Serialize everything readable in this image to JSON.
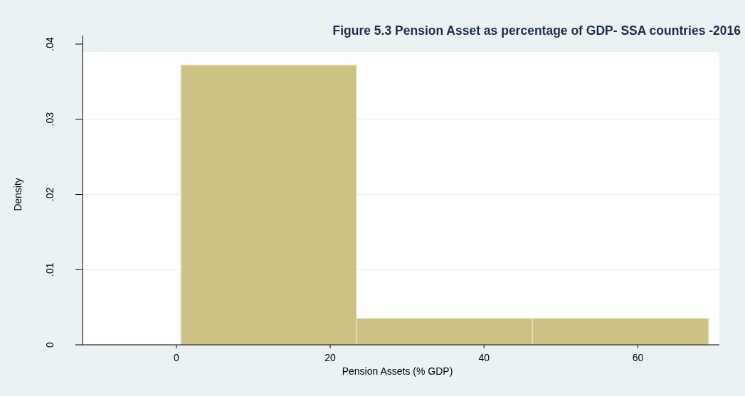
{
  "chart_data": {
    "type": "histogram",
    "title": "Figure 5.3 Pension Asset as percentage of GDP- SSA countries -2016",
    "xlabel": "Pension Assets (% GDP)",
    "ylabel": "Density",
    "bins": [
      0.6,
      23.4,
      46.3,
      69.2
    ],
    "values": [
      0.0372,
      0.0035,
      0.0035
    ],
    "color": "#cbc283",
    "xlim": [
      -12.2,
      70.6
    ],
    "xticks": [
      0,
      20,
      40,
      60
    ],
    "ylim": [
      0,
      0.04
    ],
    "yticks": [
      {
        "value": 0,
        "label": "0"
      },
      {
        "value": 0.01,
        "label": ".01"
      },
      {
        "value": 0.02,
        "label": ".02"
      },
      {
        "value": 0.03,
        "label": ".03"
      },
      {
        "value": 0.04,
        "label": ".04"
      }
    ],
    "grid": "y"
  }
}
